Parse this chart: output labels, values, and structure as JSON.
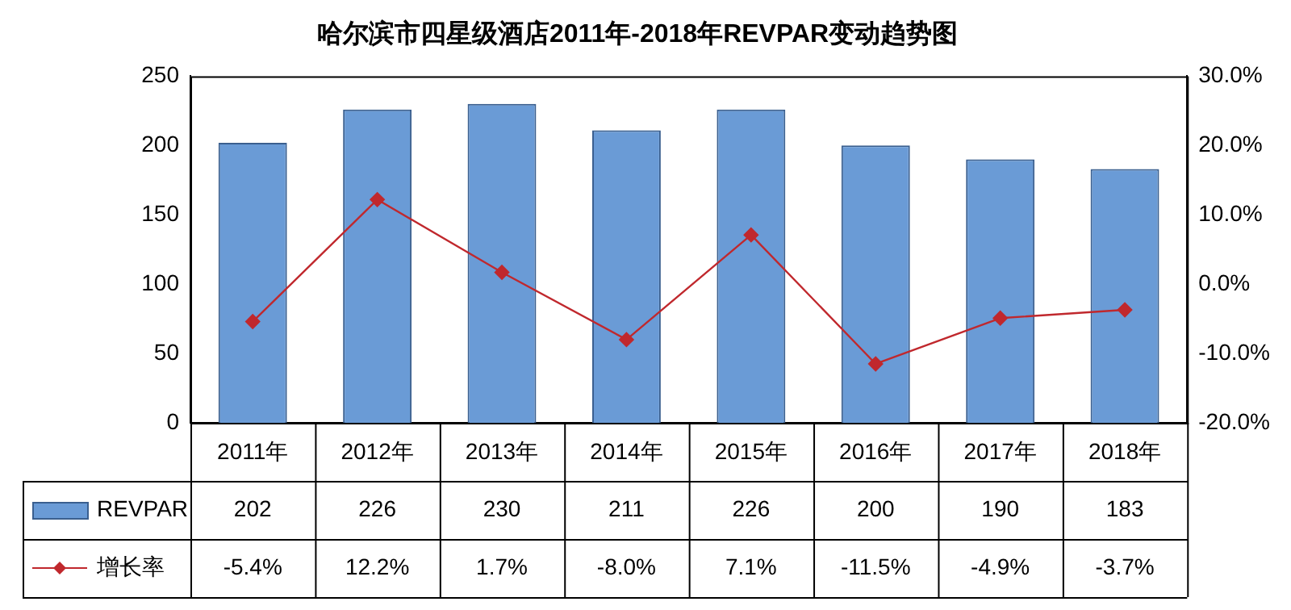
{
  "chart_data": {
    "type": "bar",
    "title": "哈尔滨市四星级酒店2011年-2018年REVPAR变动趋势图",
    "categories": [
      "2011年",
      "2012年",
      "2013年",
      "2014年",
      "2015年",
      "2016年",
      "2017年",
      "2018年"
    ],
    "series": [
      {
        "name": "REVPAR",
        "color": "#6a9bd6",
        "values": [
          202,
          226,
          230,
          211,
          226,
          200,
          190,
          183
        ]
      },
      {
        "name": "增长率",
        "type": "line",
        "axis": "y2",
        "color": "#c0282d",
        "values": [
          -5.4,
          12.2,
          1.7,
          -8.0,
          7.1,
          -11.5,
          -4.9,
          -3.7
        ],
        "value_labels": [
          "-5.4%",
          "12.2%",
          "1.7%",
          "-8.0%",
          "7.1%",
          "-11.5%",
          "-4.9%",
          "-3.7%"
        ]
      }
    ],
    "ylim": [
      0,
      250
    ],
    "yticks": [
      0,
      50,
      100,
      150,
      200,
      250
    ],
    "y2lim": [
      -20,
      30
    ],
    "y2ticks": [
      {
        "value": -20,
        "label": "-20.0%"
      },
      {
        "value": -10,
        "label": "-10.0%"
      },
      {
        "value": 0,
        "label": "0.0%"
      },
      {
        "value": 10,
        "label": "10.0%"
      },
      {
        "value": 20,
        "label": "20.0%"
      },
      {
        "value": 30,
        "label": "30.0%"
      }
    ],
    "data_labels": true,
    "legend": "bottom",
    "marker": "diamond",
    "grid": false
  }
}
